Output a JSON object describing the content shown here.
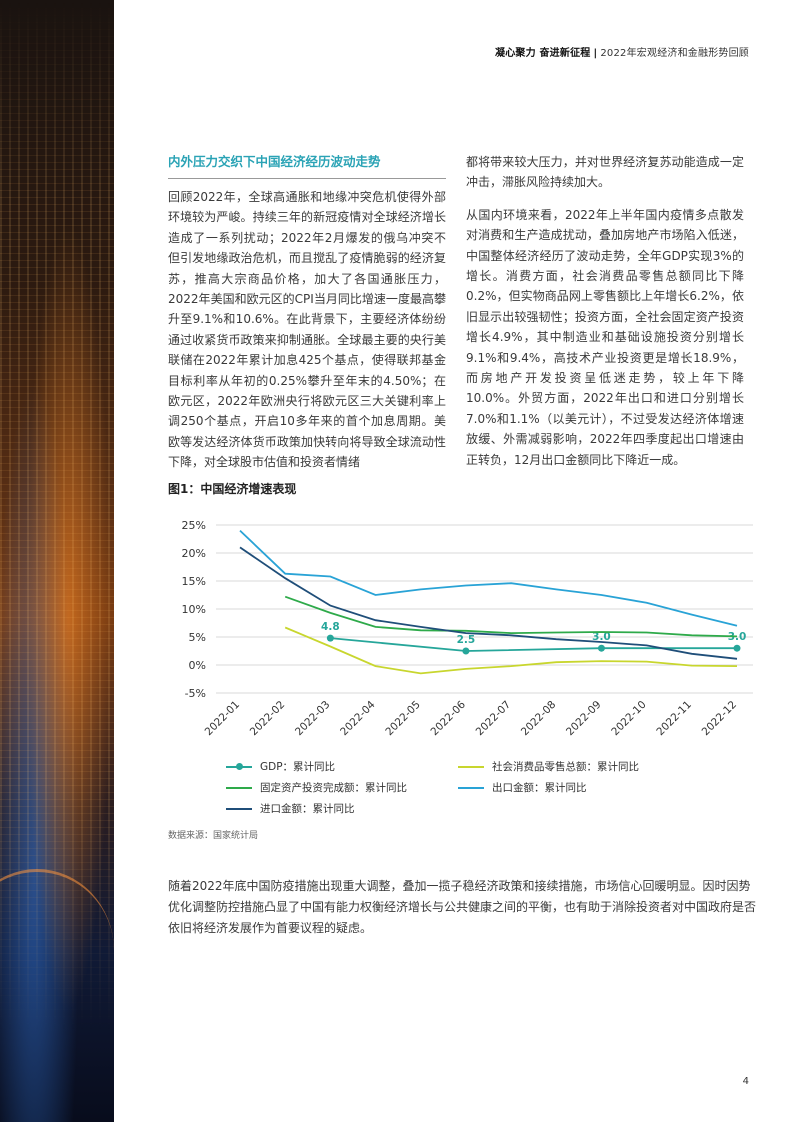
{
  "header": {
    "bold": "凝心聚力 奋进新征程",
    "separator": "|",
    "subtitle": "2022年宏观经济和金融形势回顾"
  },
  "section": {
    "title": "内外压力交织下中国经济经历波动走势"
  },
  "left_column": {
    "paragraph": "回顾2022年，全球高通胀和地缘冲突危机使得外部环境较为严峻。持续三年的新冠疫情对全球经济增长造成了一系列扰动；2022年2月爆发的俄乌冲突不但引发地缘政治危机，而且搅乱了疫情脆弱的经济复苏，推高大宗商品价格，加大了各国通胀压力，2022年美国和欧元区的CPI当月同比增速一度最高攀升至9.1%和10.6%。在此背景下，主要经济体纷纷通过收紧货币政策来抑制通胀。全球最主要的央行美联储在2022年累计加息425个基点，使得联邦基金目标利率从年初的0.25%攀升至年末的4.50%；在欧元区，2022年欧洲央行将欧元区三大关键利率上调250个基点，开启10多年来的首个加息周期。美欧等发达经济体货币政策加快转向将导致全球流动性下降，对全球股市估值和投资者情绪"
  },
  "right_column": {
    "paragraph1": "都将带来较大压力，并对世界经济复苏动能造成一定冲击，滞胀风险持续加大。",
    "paragraph2": "从国内环境来看，2022年上半年国内疫情多点散发对消费和生产造成扰动，叠加房地产市场陷入低迷，中国整体经济经历了波动走势，全年GDP实现3%的增长。消费方面，社会消费品零售总额同比下降0.2%，但实物商品网上零售额比上年增长6.2%，依旧显示出较强韧性；投资方面，全社会固定资产投资增长4.9%，其中制造业和基础设施投资分别增长9.1%和9.4%，高技术产业投资更是增长18.9%，而房地产开发投资呈低迷走势，较上年下降10.0%。外贸方面，2022年出口和进口分别增长7.0%和1.1%（以美元计），不过受发达经济体增速放缓、外需减弱影响，2022年四季度起出口增速由正转负，12月出口金额同比下降近一成。"
  },
  "figure": {
    "title": "图1：中国经济增速表现",
    "source": "数据来源：国家统计局"
  },
  "chart_data": {
    "type": "line",
    "categories": [
      "2022-01",
      "2022-02",
      "2022-03",
      "2022-04",
      "2022-05",
      "2022-06",
      "2022-07",
      "2022-08",
      "2022-09",
      "2022-10",
      "2022-11",
      "2022-12"
    ],
    "ylim": [
      -5,
      25
    ],
    "yticks": [
      "-5%",
      "0%",
      "5%",
      "10%",
      "15%",
      "20%",
      "25%"
    ],
    "grid": true,
    "legend_position": "bottom",
    "series": [
      {
        "name": "GDP：累计同比",
        "color": "#26a69a",
        "markers": true,
        "values": [
          null,
          null,
          4.8,
          null,
          null,
          2.5,
          null,
          null,
          3.0,
          null,
          null,
          3.0
        ],
        "labels": {
          "2": "4.8",
          "5": "2.5",
          "8": "3.0",
          "11": "3.0"
        }
      },
      {
        "name": "社会消费品零售总额：累计同比",
        "color": "#c8d62e",
        "markers": false,
        "values": [
          null,
          6.7,
          3.3,
          -0.2,
          -1.5,
          -0.7,
          -0.2,
          0.5,
          0.7,
          0.6,
          -0.1,
          -0.2
        ]
      },
      {
        "name": "固定资产投资完成额：累计同比",
        "color": "#2eaa4a",
        "markers": false,
        "values": [
          null,
          12.2,
          9.3,
          6.8,
          6.2,
          6.1,
          5.7,
          5.8,
          5.9,
          5.8,
          5.3,
          5.1
        ]
      },
      {
        "name": "出口金额：累计同比",
        "color": "#29a3d6",
        "markers": false,
        "values": [
          24.0,
          16.3,
          15.8,
          12.5,
          13.5,
          14.2,
          14.6,
          13.5,
          12.5,
          11.1,
          9.0,
          7.0
        ]
      },
      {
        "name": "进口金额：累计同比",
        "color": "#1f4e79",
        "markers": false,
        "values": [
          21.0,
          15.5,
          10.6,
          8.0,
          6.8,
          5.7,
          5.3,
          4.6,
          4.1,
          3.5,
          2.0,
          1.1
        ]
      }
    ]
  },
  "bottom_paragraph": "随着2022年底中国防疫措施出现重大调整，叠加一揽子稳经济政策和接续措施，市场信心回暖明显。因时因势优化调整防控措施凸显了中国有能力权衡经济增长与公共健康之间的平衡，也有助于消除投资者对中国政府是否依旧将经济发展作为首要议程的疑虑。",
  "page_number": "4"
}
